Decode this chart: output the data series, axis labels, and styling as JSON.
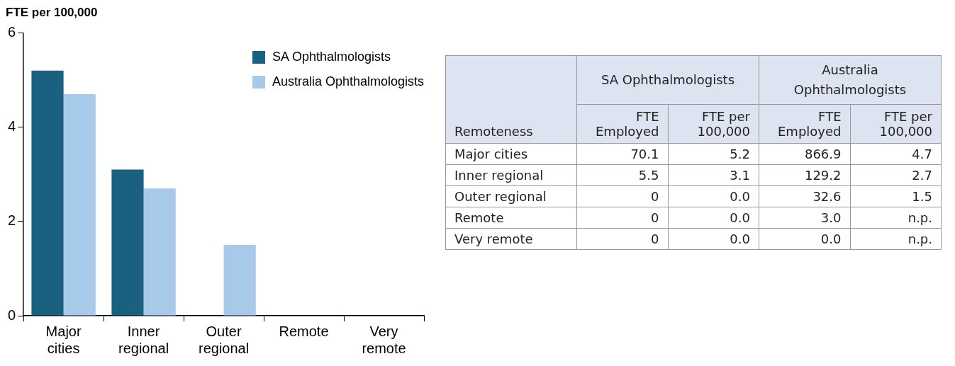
{
  "chart_data": [
    {
      "type": "bar",
      "ylabel": "FTE per 100,000",
      "categories": [
        "Major cities",
        "Inner regional",
        "Outer regional",
        "Remote",
        "Very remote"
      ],
      "series": [
        {
          "name": "SA Ophthalmologists",
          "color": "#1a6080",
          "values": [
            5.2,
            3.1,
            0,
            0,
            0
          ]
        },
        {
          "name": "Australia Ophthalmologists",
          "color": "#a8caea",
          "values": [
            4.7,
            2.7,
            1.5,
            null,
            null
          ]
        }
      ],
      "ylim": [
        0,
        6
      ],
      "yticks": [
        0,
        2,
        4,
        6
      ],
      "grid": false,
      "legend": "top right"
    },
    {
      "type": "other",
      "annotations": [
        "Remoteness",
        "SA Ophthalmologists",
        "Australia Ophthalmologists"
      ],
      "categories": [
        "Major cities",
        "Inner regional",
        "Outer regional",
        "Remote",
        "Very remote"
      ],
      "series": [
        {
          "name": "FTE Employed",
          "values": [
            70.1,
            5.5,
            0,
            0,
            0
          ],
          "value_labels": [
            "70.1",
            "5.5",
            "0",
            "0",
            "0"
          ]
        },
        {
          "name": "FTE per 100,000",
          "values": [
            5.2,
            3.1,
            0.0,
            0.0,
            0.0
          ],
          "value_labels": [
            "5.2",
            "3.1",
            "0.0",
            "0.0",
            "0.0"
          ]
        },
        {
          "name": "FTE Employed",
          "values": [
            866.9,
            129.2,
            32.6,
            3.0,
            0.0
          ],
          "value_labels": [
            "866.9",
            "129.2",
            "32.6",
            "3.0",
            "0.0"
          ]
        },
        {
          "name": "FTE per 100,000",
          "values": [
            4.7,
            2.7,
            1.5,
            null,
            null
          ],
          "value_labels": [
            "4.7",
            "2.7",
            "1.5",
            "n.p.",
            "n.p."
          ]
        }
      ]
    }
  ]
}
